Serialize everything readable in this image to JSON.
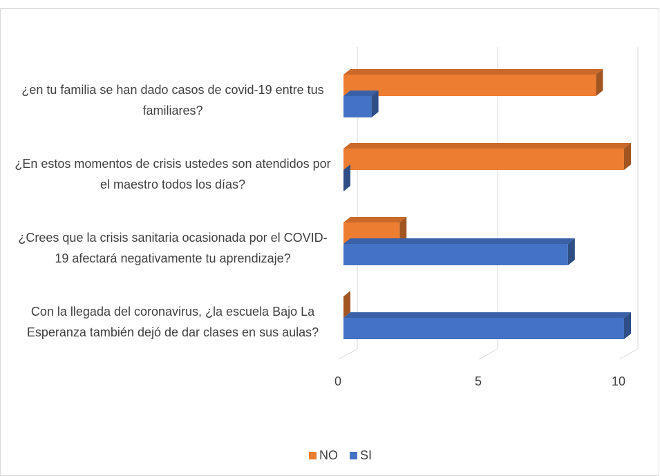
{
  "chart_data": {
    "type": "bar3d",
    "orientation": "horizontal",
    "categories": [
      "¿en tu familia se han dado casos de covid-19 entre tus familiares?",
      "¿En estos momentos de crisis ustedes son atendidos por el maestro todos los días?",
      "¿Crees que la crisis sanitaria ocasionada por el COVID-19 afectará negativamente tu aprendizaje?",
      "Con la llegada del coronavirus, ¿la escuela Bajo La Esperanza también dejó de dar clases en sus aulas?"
    ],
    "series": [
      {
        "name": "NO",
        "color": "#ED7D31",
        "values": [
          9,
          10,
          2,
          0
        ]
      },
      {
        "name": "SI",
        "color": "#4472C4",
        "values": [
          1,
          0,
          8,
          10
        ]
      }
    ],
    "xlim": [
      0,
      10
    ],
    "xticks": [
      0,
      5,
      10
    ],
    "grid": true,
    "legend": "bottom"
  }
}
